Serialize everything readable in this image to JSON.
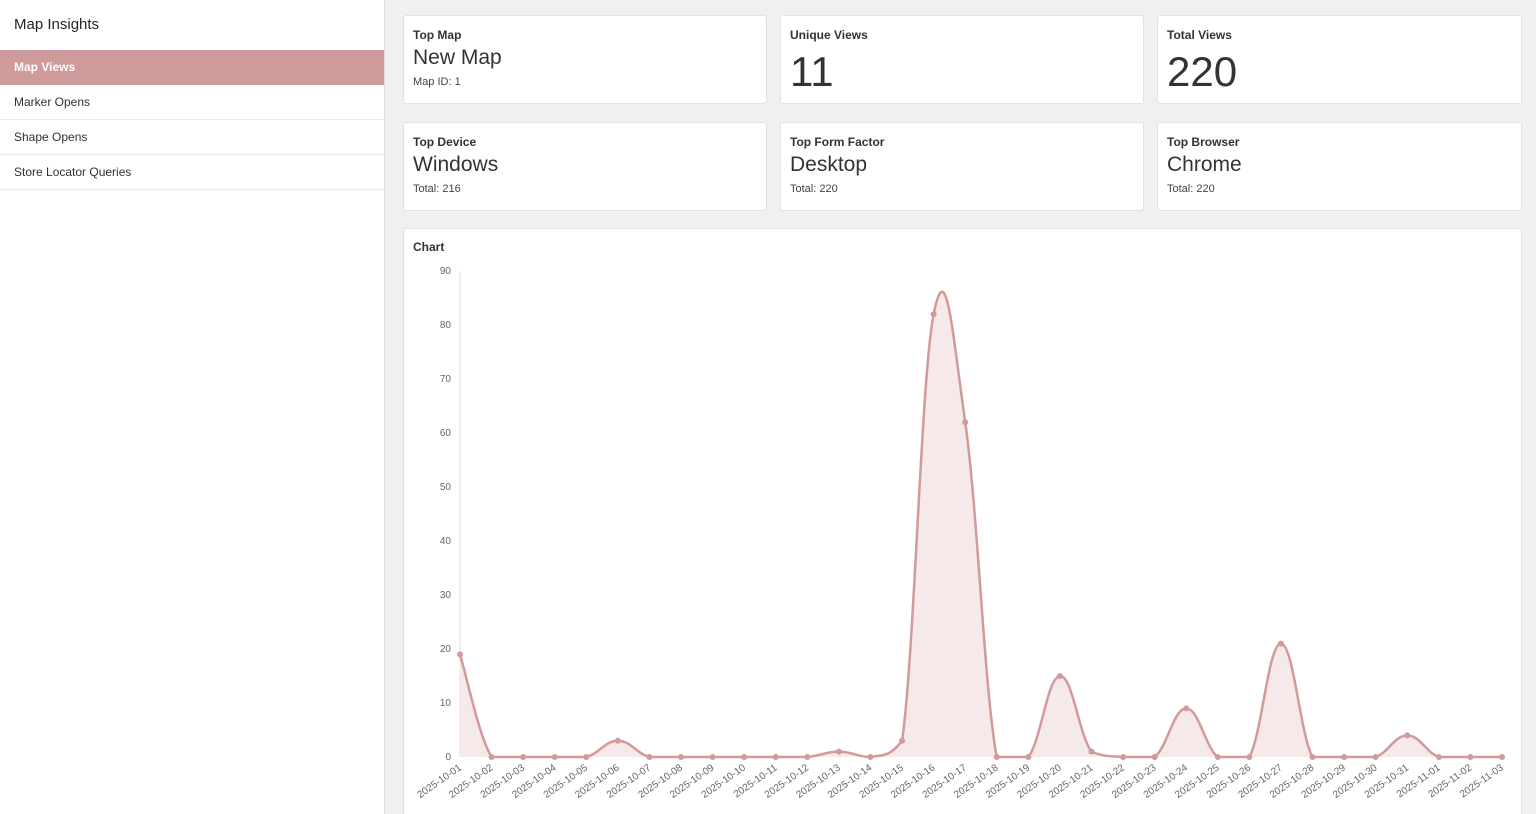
{
  "sidebar": {
    "title": "Map Insights",
    "items": [
      {
        "label": "Map Views",
        "active": true
      },
      {
        "label": "Marker Opens",
        "active": false
      },
      {
        "label": "Shape Opens",
        "active": false
      },
      {
        "label": "Store Locator Queries",
        "active": false
      }
    ]
  },
  "cards": {
    "top_map": {
      "label": "Top Map",
      "value": "New Map",
      "sub": "Map ID: 1"
    },
    "unique_views": {
      "label": "Unique Views",
      "value": "11"
    },
    "total_views": {
      "label": "Total Views",
      "value": "220"
    },
    "top_device": {
      "label": "Top Device",
      "value": "Windows",
      "sub": "Total: 216"
    },
    "top_form_factor": {
      "label": "Top Form Factor",
      "value": "Desktop",
      "sub": "Total: 220"
    },
    "top_browser": {
      "label": "Top Browser",
      "value": "Chrome",
      "sub": "Total: 220"
    }
  },
  "colors": {
    "accent": "#cf9a9a",
    "line": "#d29a9a",
    "fill": "#f6e9e9",
    "background": "#f0f0f1"
  },
  "chart_data": {
    "type": "area",
    "title": "Chart",
    "xlabel": "",
    "ylabel": "",
    "ylim": [
      0,
      90
    ],
    "yticks": [
      0,
      10,
      20,
      30,
      40,
      50,
      60,
      70,
      80,
      90
    ],
    "x": [
      "2025-10-01",
      "2025-10-02",
      "2025-10-03",
      "2025-10-04",
      "2025-10-05",
      "2025-10-06",
      "2025-10-07",
      "2025-10-08",
      "2025-10-09",
      "2025-10-10",
      "2025-10-11",
      "2025-10-12",
      "2025-10-13",
      "2025-10-14",
      "2025-10-15",
      "2025-10-16",
      "2025-10-17",
      "2025-10-18",
      "2025-10-19",
      "2025-10-20",
      "2025-10-21",
      "2025-10-22",
      "2025-10-23",
      "2025-10-24",
      "2025-10-25",
      "2025-10-26",
      "2025-10-27",
      "2025-10-28",
      "2025-10-29",
      "2025-10-30",
      "2025-10-31",
      "2025-11-01",
      "2025-11-02",
      "2025-11-03"
    ],
    "series": [
      {
        "values": [
          19,
          0,
          0,
          0,
          0,
          3,
          0,
          0,
          0,
          0,
          0,
          0,
          1,
          0,
          3,
          82,
          62,
          0,
          0,
          15,
          1,
          0,
          0,
          9,
          0,
          0,
          21,
          0,
          0,
          0,
          4,
          0,
          0,
          0
        ]
      }
    ],
    "grid": false,
    "legend": "none"
  }
}
